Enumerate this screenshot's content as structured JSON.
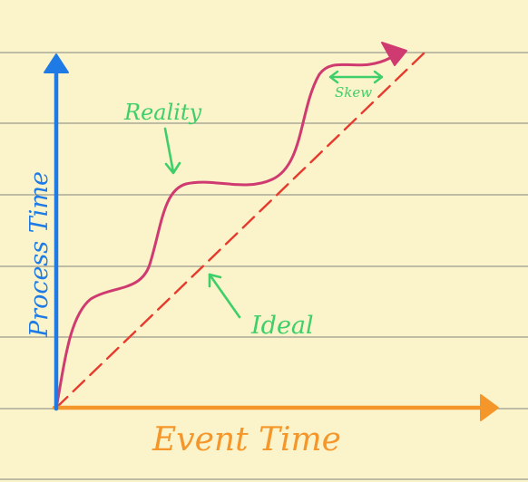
{
  "axes": {
    "x_label": "Event Time",
    "y_label": "Process Time"
  },
  "annotations": {
    "reality": "Reality",
    "ideal": "Ideal",
    "skew": "Skew"
  },
  "colors": {
    "paper": "#fbf3c9",
    "ruled_line": "#9a9a8e",
    "x_axis": "#f5962a",
    "y_axis": "#1e7be6",
    "reality_curve": "#cf3a70",
    "ideal_line": "#e63a2e",
    "annotation": "#3fcf6a"
  }
}
